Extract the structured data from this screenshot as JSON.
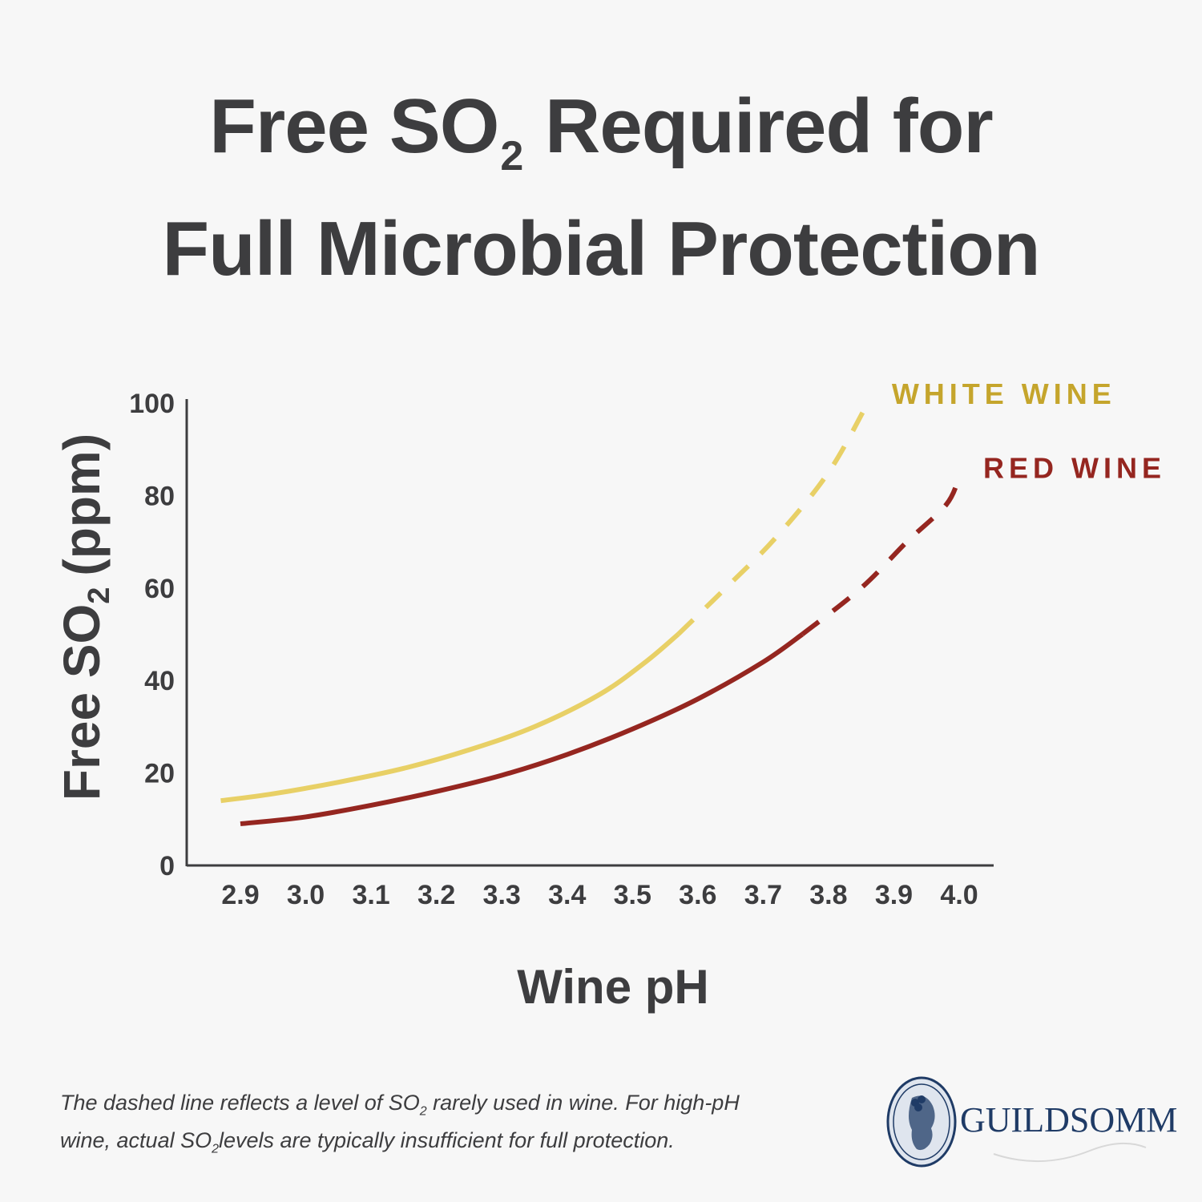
{
  "title": {
    "line1_pre": "Free SO",
    "line1_sub": "2",
    "line1_post": "Required for",
    "line2": "Full Microbial Protection"
  },
  "chart_data": {
    "type": "line",
    "xlabel": "Wine pH",
    "ylabel_pre": "Free SO",
    "ylabel_sub": "2",
    "ylabel_post": "(ppm)",
    "ylim": [
      0,
      100
    ],
    "xlim": [
      2.82,
      4.05
    ],
    "y_ticks": [
      "0",
      "20",
      "40",
      "60",
      "80",
      "100"
    ],
    "y_tick_values": [
      0,
      20,
      40,
      60,
      80,
      100
    ],
    "x_ticks": [
      "2.9",
      "3.0",
      "3.1",
      "3.2",
      "3.3",
      "3.4",
      "3.5",
      "3.6",
      "3.7",
      "3.8",
      "3.9",
      "4.0"
    ],
    "x_tick_values": [
      2.9,
      3.0,
      3.1,
      3.2,
      3.3,
      3.4,
      3.5,
      3.6,
      3.7,
      3.8,
      3.9,
      4.0
    ],
    "series": [
      {
        "name": "WHITE WINE",
        "color": "#e8d066",
        "label_color": "#c5a52c",
        "solid": [
          [
            2.87,
            14
          ],
          [
            2.95,
            15.5
          ],
          [
            3.05,
            18
          ],
          [
            3.15,
            21
          ],
          [
            3.25,
            25
          ],
          [
            3.35,
            30
          ],
          [
            3.45,
            37
          ],
          [
            3.52,
            44
          ],
          [
            3.57,
            50
          ]
        ],
        "dashed": [
          [
            3.57,
            50
          ],
          [
            3.65,
            61
          ],
          [
            3.72,
            71
          ],
          [
            3.8,
            85
          ],
          [
            3.86,
            100
          ]
        ]
      },
      {
        "name": "RED WINE",
        "color": "#952620",
        "label_color": "#952620",
        "solid": [
          [
            2.9,
            9
          ],
          [
            3.0,
            10.5
          ],
          [
            3.1,
            13
          ],
          [
            3.2,
            16
          ],
          [
            3.3,
            19.5
          ],
          [
            3.4,
            24
          ],
          [
            3.5,
            29.5
          ],
          [
            3.6,
            36
          ],
          [
            3.7,
            44
          ],
          [
            3.76,
            50
          ]
        ],
        "dashed": [
          [
            3.76,
            50
          ],
          [
            3.85,
            60
          ],
          [
            3.92,
            70
          ],
          [
            3.98,
            78
          ],
          [
            4.0,
            84
          ]
        ]
      }
    ]
  },
  "footnote": {
    "line1_pre": "The dashed line reflects a level of SO",
    "line1_sub": "2",
    "line1_post": " rarely used in wine. For high-pH",
    "line2_pre": "wine, actual SO",
    "line2_sub": "2",
    "line2_post": "levels are typically insufficient for full protection."
  },
  "logo": {
    "text": "GUILDSOMM",
    "color": "#1f3b66"
  }
}
